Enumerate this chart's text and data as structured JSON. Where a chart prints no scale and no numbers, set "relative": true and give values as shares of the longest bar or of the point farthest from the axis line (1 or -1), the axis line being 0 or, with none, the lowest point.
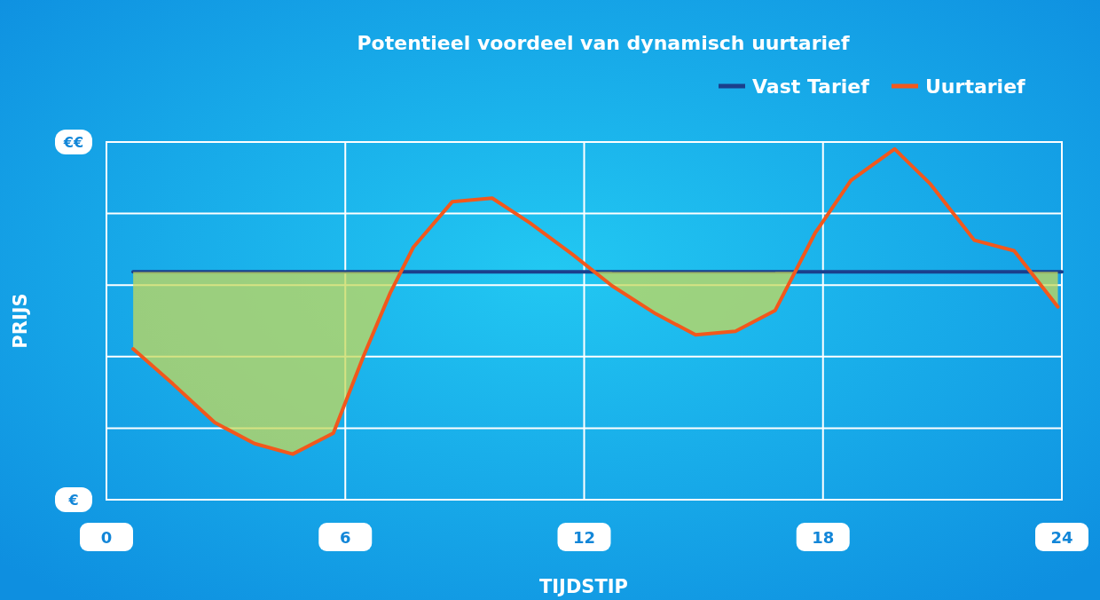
{
  "chart_data": {
    "type": "line",
    "title": "Potentieel voordeel van dynamisch uurtarief",
    "xlabel": "TIJDSTIP",
    "ylabel": "PRIJS",
    "relative": true,
    "xlim": [
      0,
      24
    ],
    "xticks": [
      0,
      6,
      12,
      18,
      24
    ],
    "grid": true,
    "legend": "top right",
    "annotations": [
      "€€",
      "€"
    ],
    "series": [
      {
        "name": "Vast Tarief",
        "color": "#1b3f8c",
        "x": [
          0.67,
          24
        ],
        "values": [
          0.65,
          0.65
        ]
      },
      {
        "name": "Uurtarief",
        "color": "#f2581c",
        "x": [
          0.67,
          1.67,
          2.72,
          3.72,
          4.68,
          5.7,
          6.46,
          7.13,
          7.71,
          8.69,
          9.69,
          10.63,
          11.7,
          12.7,
          13.8,
          14.8,
          15.8,
          16.8,
          17.8,
          18.7,
          19.8,
          20.7,
          21.8,
          22.8,
          23.9
        ],
        "values": [
          0.43,
          0.33,
          0.22,
          0.16,
          0.13,
          0.19,
          0.41,
          0.59,
          0.72,
          0.85,
          0.86,
          0.79,
          0.7,
          0.61,
          0.53,
          0.47,
          0.48,
          0.54,
          0.76,
          0.91,
          1,
          0.9,
          0.74,
          0.71,
          0.55
        ],
        "lower": [
          0.43,
          0.33,
          0.22,
          0.16,
          0.13,
          0.19,
          0.41,
          0.59,
          0.72,
          0.85,
          0.86,
          0.79,
          0.7,
          0.61,
          0.53,
          0.47,
          0.48,
          0.54,
          0.76,
          0.91,
          1,
          0.9,
          0.74,
          0.71,
          0.55
        ],
        "upper": [
          0.65,
          0.65,
          0.65,
          0.65,
          0.65,
          0.65,
          0.65,
          0.65,
          0.72,
          0.85,
          0.86,
          0.79,
          0.7,
          0.65,
          0.65,
          0.65,
          0.65,
          0.65,
          0.76,
          0.91,
          1,
          0.9,
          0.74,
          0.71,
          0.65
        ]
      }
    ]
  }
}
